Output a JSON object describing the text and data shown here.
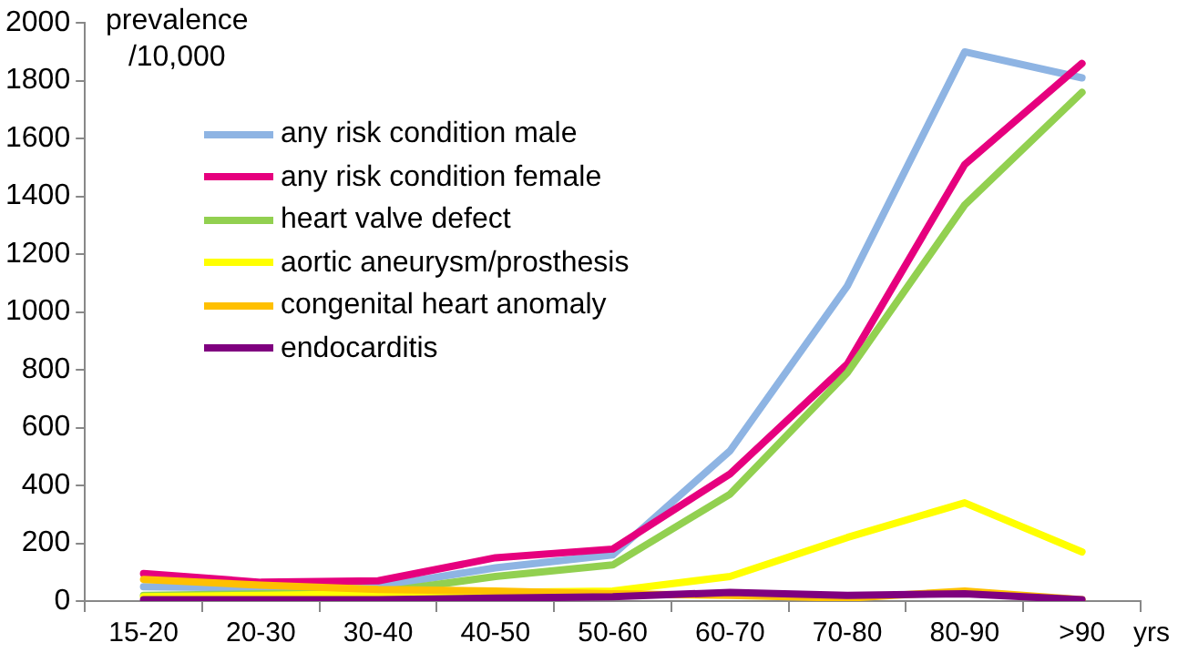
{
  "chart_data": {
    "type": "line",
    "ylabel": "prevalence\n/10,000",
    "xlabel": "yrs",
    "categories": [
      "15-20",
      "20-30",
      "30-40",
      "40-50",
      "50-60",
      "60-70",
      "70-80",
      "80-90",
      ">90"
    ],
    "series": [
      {
        "name": "any risk condition male",
        "color": "#8eb4e3",
        "values": [
          50,
          45,
          50,
          115,
          160,
          520,
          1090,
          1900,
          1810
        ]
      },
      {
        "name": "any risk condition female",
        "color": "#e6007e",
        "values": [
          95,
          65,
          70,
          150,
          180,
          440,
          820,
          1510,
          1860
        ]
      },
      {
        "name": "heart valve defect",
        "color": "#92d050",
        "values": [
          20,
          25,
          30,
          85,
          125,
          370,
          790,
          1370,
          1760
        ]
      },
      {
        "name": "aortic aneurysm/prosthesis",
        "color": "#ffff00",
        "values": [
          15,
          20,
          25,
          30,
          35,
          85,
          220,
          340,
          170
        ]
      },
      {
        "name": "congenital heart anomaly",
        "color": "#ffc000",
        "values": [
          75,
          55,
          40,
          35,
          25,
          20,
          10,
          35,
          5
        ]
      },
      {
        "name": "endocarditis",
        "color": "#7f007f",
        "values": [
          5,
          5,
          5,
          10,
          15,
          30,
          20,
          25,
          5
        ]
      }
    ],
    "ylim": [
      0,
      2000
    ],
    "yticks": [
      0,
      200,
      400,
      600,
      800,
      1000,
      1200,
      1400,
      1600,
      1800,
      2000
    ],
    "grid": false,
    "legend": "top left",
    "marker": "none",
    "line_style": "solid"
  }
}
